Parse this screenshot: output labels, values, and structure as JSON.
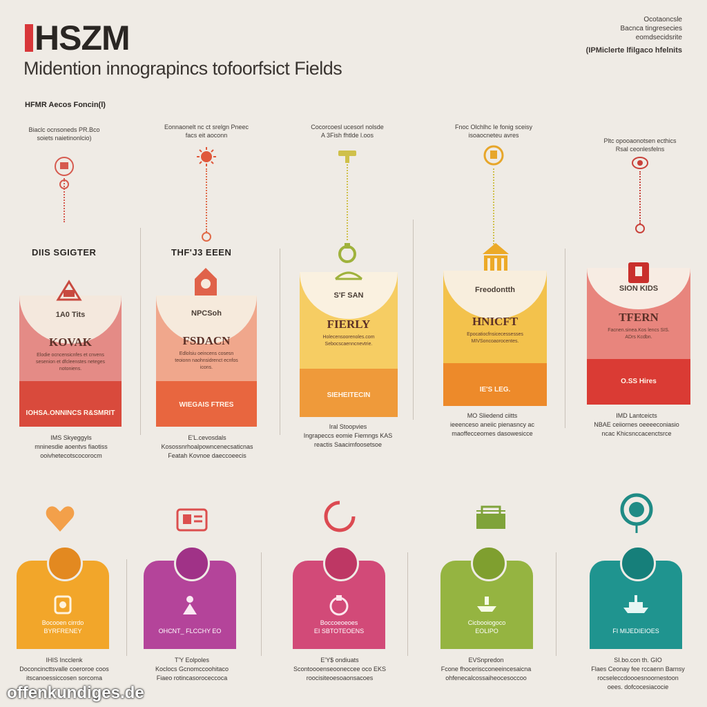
{
  "header": {
    "logo": "HSZM",
    "subtitle": "Midention innograpincs tofoorfsict Fields",
    "section_label": "HFMR Aecos Foncin(l)",
    "top_right": [
      "Ocotaoncsle",
      "Bacnca tingresecies",
      "eomdsecidsrite"
    ],
    "top_right_accent": "(IPMiclerte lfilgaco hfelnits"
  },
  "top_columns": [
    {
      "caption": "Biaclc ocnsoneds PR.Bco\nsoiets naietinonlcio)",
      "heading": "DIIS SGIGTER",
      "badge": "1A0 Tits",
      "title": "KOVAK",
      "lines": "Elodie ocncensicnfes et cnvens\nsesenion et dfcleenstes neteges\nnotoniens.",
      "band": "IOHSA.ONNINCS R&SMRIT",
      "desc": "IMS Skyeggyls\nmninesdie aoentvs fiaotiss\nooivhetecotscocorocm",
      "colors": {
        "main": "#e48b86",
        "band": "#d94a3c",
        "accent": "#d65a4f",
        "arch": "#f4e8dd"
      }
    },
    {
      "caption": "Eonnaonelt nc ct srelgn Pneec\nfacs eit aoconn",
      "heading": "THF'J3 EEEN",
      "badge": "NPCSoh",
      "title": "FSDACN",
      "lines": "Edlolsiu oeincens cosesn\nteoionn naohnsidrenct\necnfos icons.",
      "band": "WIEGAIS FTRES",
      "desc": "E'L.cevosdals\nKosossnrhoalpowncenecsaticnas\nFeatah Kovnoe daeccoeecis",
      "colors": {
        "main": "#f0a78c",
        "band": "#e8663f",
        "accent": "#e06a48",
        "arch": "#f6eadc"
      }
    },
    {
      "caption": "Cocorcoesl ucesorl nolsde\nA 3Fish fhtlde l.oos",
      "heading": "",
      "badge": "S'F SAN",
      "title": "FIERLY",
      "lines": "Holecensoorenoles.com\nSebocscaenncnevtrie.",
      "band": "SIEHEITECIN",
      "desc": "Iral Stoopvies\nIngrapeccs eomie Fiemngs KAS\nreactis Saacimfoosetsoe",
      "colors": {
        "main": "#f6cd63",
        "band": "#ef9a3a",
        "accent": "#cfc04a",
        "arch": "#faf1e0"
      }
    },
    {
      "caption": "Fnoc Olchlhc Ie fonig sceisy\nisoaocneteu avres",
      "heading": "",
      "badge": "Freodontth",
      "title": "HNICFT",
      "lines": "Epocatiocfnsicecessesses\nMIVSoncoaorocentes.",
      "band": "IE'S LEG.",
      "desc": "MO Sliedend ciitts\nieeenceso aneiic pienasncy ac\nmaoffecceomes dasowesicce",
      "colors": {
        "main": "#f3c24c",
        "band": "#ed8a2a",
        "accent": "#e7a62a",
        "arch": "#f8eedd"
      }
    },
    {
      "caption": "Pltc opooaonotsen ecthics\nRsal ceonlesfelns",
      "heading": "",
      "badge": "SION KIDS",
      "title": "TFERN",
      "lines": "Facnen.sinea.Kos lencs\nSIS. ADrs Kcdbn.",
      "band": "O.SS Hires",
      "desc": "IMD Lantceicts\nNBAE ceiiornes oeeeeconiasio\nncac Khicsnccacenctsrce",
      "colors": {
        "main": "#e8857d",
        "band": "#da3b34",
        "accent": "#c9413a",
        "arch": "#f7ece3"
      }
    }
  ],
  "bottom_columns": [
    {
      "label": "Bocooen cirrdo\nBYRFRENEY",
      "desc": "IHIS Incclenk\nDoconcincttsvalle coeroroe coos\nitscanoessiccosen sorcoma",
      "colors": {
        "main": "#f2a62a",
        "circle": "#e38920",
        "icon": "#f3a04a"
      }
    },
    {
      "label": "OHCNT_ FLCCHY EO",
      "desc": "T'Y Eolpoles\nKoclocs Gcnomccoohitaco\nFiaeo rotincasoroceccoca",
      "colors": {
        "main": "#b4449a",
        "circle": "#a03287",
        "icon": "#dc4f4e"
      }
    },
    {
      "label": "Boccoeoeoes\nEI SBTOTEOENS",
      "desc": "E'Y$ ondiuats\nScontoooenseooneccee oco EKS\nroocisiteoesoaonsacoes",
      "colors": {
        "main": "#d24a78",
        "circle": "#be3764",
        "icon": "#dc4a52"
      }
    },
    {
      "label": "Cicbooiogoco\nEOLIPO",
      "desc": "EVSnpredon\nFcone fhoceriscconeeincesaicna\nohfenecalcossaiheocesoccoo",
      "colors": {
        "main": "#95b441",
        "circle": "#7f9f2f",
        "icon": "#7fa33a"
      }
    },
    {
      "label": "FI MIJEDIEIOES",
      "desc": "SI.bo.con th. GIO\nFlaes Ceonay fee rccaenn Barnsy\nrocseleccdoooesnoornestoon\noees. dofcocesiacocie",
      "colors": {
        "main": "#1f948f",
        "circle": "#167f7a",
        "icon": "#1f8b85"
      }
    }
  ],
  "watermark": "offenkundiges.de"
}
